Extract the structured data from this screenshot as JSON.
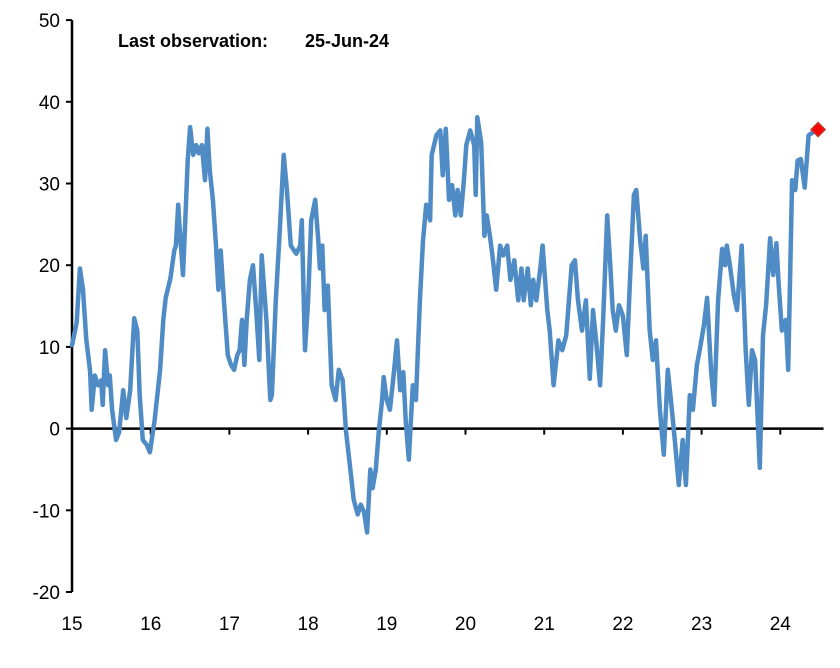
{
  "chart_data": {
    "type": "line",
    "title": "",
    "xlabel": "",
    "ylabel": "",
    "xlim": [
      15,
      24.55
    ],
    "ylim": [
      -20,
      50
    ],
    "grid": false,
    "legend": "none",
    "x_ticks": [
      15,
      16,
      17,
      18,
      19,
      20,
      21,
      22,
      23,
      24
    ],
    "x_tick_labels": [
      "15",
      "16",
      "17",
      "18",
      "19",
      "20",
      "21",
      "22",
      "23",
      "24"
    ],
    "y_ticks": [
      -20,
      -10,
      0,
      10,
      20,
      30,
      40,
      50
    ],
    "y_tick_labels": [
      "-20",
      "-10",
      "0",
      "10",
      "20",
      "30",
      "40",
      "50"
    ],
    "annotation": {
      "label": "Last observation:",
      "value": "25-Jun-24"
    },
    "colors": {
      "line": "#4f8bc4",
      "marker": "#ff0000",
      "marker_edge": "#c0392b",
      "axis": "#000000"
    },
    "series": [
      {
        "x": [
          15.0,
          15.06,
          15.1,
          15.14,
          15.18,
          15.23,
          15.25,
          15.29,
          15.33,
          15.37,
          15.39,
          15.42,
          15.46,
          15.48,
          15.51,
          15.56,
          15.6,
          15.65,
          15.69,
          15.74,
          15.79,
          15.83,
          15.86,
          15.9,
          15.95,
          15.99,
          16.05,
          16.12,
          16.16,
          16.19,
          16.25,
          16.3,
          16.32,
          16.35,
          16.37,
          16.41,
          16.44,
          16.47,
          16.5,
          16.54,
          16.58,
          16.61,
          16.65,
          16.69,
          16.72,
          16.75,
          16.79,
          16.83,
          16.86,
          16.89,
          16.93,
          16.98,
          17.02,
          17.06,
          17.1,
          17.13,
          17.16,
          17.19,
          17.22,
          17.26,
          17.3,
          17.34,
          17.38,
          17.41,
          17.47,
          17.52,
          17.54,
          17.59,
          17.64,
          17.69,
          17.73,
          17.78,
          17.85,
          17.9,
          17.92,
          17.96,
          18.0,
          18.04,
          18.09,
          18.13,
          18.15,
          18.18,
          18.21,
          18.25,
          18.3,
          18.35,
          18.39,
          18.44,
          18.48,
          18.53,
          18.58,
          18.63,
          18.67,
          18.71,
          18.75,
          18.79,
          18.82,
          18.86,
          18.9,
          18.94,
          18.96,
          19.0,
          19.04,
          19.08,
          19.13,
          19.17,
          19.21,
          19.24,
          19.28,
          19.33,
          19.37,
          19.42,
          19.46,
          19.5,
          19.55,
          19.57,
          19.63,
          19.68,
          19.71,
          19.75,
          19.79,
          19.83,
          19.87,
          19.9,
          19.94,
          19.98,
          20.01,
          20.06,
          20.11,
          20.13,
          20.15,
          20.2,
          20.24,
          20.27,
          20.31,
          20.35,
          20.39,
          20.44,
          20.48,
          20.53,
          20.57,
          20.62,
          20.67,
          20.71,
          20.74,
          20.79,
          20.83,
          20.86,
          20.9,
          20.95,
          20.98,
          21.04,
          21.07,
          21.12,
          21.18,
          21.23,
          21.28,
          21.35,
          21.39,
          21.43,
          21.48,
          21.53,
          21.58,
          21.62,
          21.66,
          21.71,
          21.75,
          21.8,
          21.84,
          21.87,
          21.91,
          21.95,
          22.0,
          22.05,
          22.09,
          22.14,
          22.17,
          22.22,
          22.26,
          22.29,
          22.34,
          22.38,
          22.42,
          22.47,
          22.52,
          22.57,
          22.61,
          22.66,
          22.71,
          22.76,
          22.8,
          22.85,
          22.89,
          22.94,
          22.98,
          23.03,
          23.07,
          23.12,
          23.16,
          23.21,
          23.26,
          23.3,
          23.32,
          23.36,
          23.41,
          23.45,
          23.51,
          23.56,
          23.6,
          23.64,
          23.68,
          23.74,
          23.78,
          23.82,
          23.87,
          23.91,
          23.95,
          23.98,
          24.02,
          24.07,
          24.1,
          24.15,
          24.19,
          24.22,
          24.26,
          24.31,
          24.36,
          24.42,
          24.48
        ],
        "y": [
          10.2,
          13,
          19.6,
          17,
          11,
          7,
          2.3,
          6.5,
          5.3,
          5.9,
          2.9,
          9.6,
          5.3,
          6.5,
          2.3,
          -1.4,
          -0.4,
          4.7,
          1.3,
          4.7,
          13.5,
          12,
          4.1,
          -1.4,
          -2,
          -2.9,
          1,
          7.2,
          13.3,
          16,
          18.4,
          21.8,
          22.4,
          27.4,
          24.3,
          18.8,
          25.5,
          32.8,
          36.9,
          33.5,
          34.7,
          33.7,
          34.7,
          30.4,
          36.7,
          31.7,
          28,
          22.4,
          17,
          21.8,
          15.7,
          9,
          7.8,
          7.2,
          9,
          9.6,
          13.3,
          7.8,
          13.3,
          18.2,
          20,
          14.5,
          8.4,
          21.2,
          13.3,
          3.5,
          4.1,
          15.7,
          24.3,
          33.5,
          29.2,
          22.4,
          21.4,
          22.4,
          25.5,
          9.6,
          15.7,
          25.5,
          28,
          23,
          19.6,
          22.4,
          14.5,
          17.5,
          5.3,
          3.5,
          7.2,
          5.9,
          -0.2,
          -4.4,
          -8.7,
          -10.5,
          -9.3,
          -10.2,
          -12.7,
          -5,
          -7.3,
          -5,
          -0.2,
          3.5,
          6.3,
          3.5,
          2.3,
          5.9,
          10.8,
          4.7,
          6.9,
          1,
          -3.8,
          5.3,
          3.5,
          15.7,
          23,
          27.4,
          25.5,
          33.5,
          35.9,
          36.5,
          31,
          36.7,
          28,
          29.8,
          26.1,
          29.2,
          26.1,
          30.4,
          34.7,
          36.5,
          34.7,
          28.6,
          38.1,
          35,
          23.6,
          26.1,
          23.6,
          20.6,
          17,
          22.4,
          21.2,
          22.4,
          18.2,
          20.6,
          15.7,
          19.6,
          15.7,
          19.6,
          15.1,
          18.2,
          15.7,
          19.6,
          22.4,
          14.5,
          12,
          5.3,
          10.8,
          9.6,
          11.4,
          20,
          20.6,
          15.7,
          12,
          15.7,
          6.1,
          14.5,
          10.8,
          5.3,
          13.5,
          26.1,
          20,
          14.5,
          12,
          15.1,
          13.8,
          9,
          18.2,
          28.6,
          29.2,
          23,
          19.6,
          23.6,
          12,
          8.4,
          10.8,
          2.3,
          -3.2,
          7.2,
          3.5,
          -1.4,
          -6.9,
          -1.4,
          -6.9,
          4.1,
          2.3,
          7.8,
          9.8,
          12.7,
          16,
          7.2,
          2.9,
          15.7,
          22,
          20,
          22.4,
          20,
          16.3,
          14.5,
          22.4,
          9.6,
          2.9,
          9.6,
          8.4,
          -4.8,
          11.4,
          15.1,
          23.3,
          18.8,
          22.7,
          17.6,
          12,
          13.3,
          7.2,
          30.4,
          29.2,
          32.8,
          33,
          29.5,
          35.9,
          36.3,
          36.6
        ]
      }
    ]
  }
}
